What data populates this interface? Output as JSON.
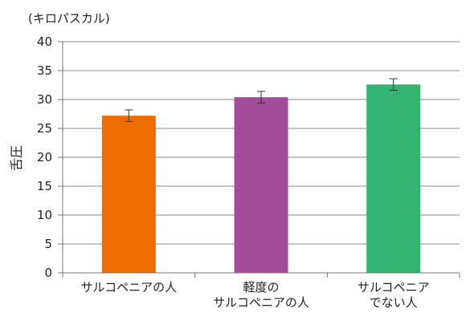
{
  "chart_data": {
    "type": "bar",
    "unit_label": "(キロパスカル)",
    "ylabel": "舌圧",
    "ylim": [
      0,
      40
    ],
    "yticks": [
      0,
      5,
      10,
      15,
      20,
      25,
      30,
      35,
      40
    ],
    "grid": true,
    "categories": [
      [
        "サルコペニアの人"
      ],
      [
        "軽度の",
        "サルコペニアの人"
      ],
      [
        "サルコペニア",
        "でない人"
      ]
    ],
    "values": [
      27.2,
      30.4,
      32.6
    ],
    "error": [
      1.0,
      1.0,
      1.0
    ],
    "colors": [
      "#ef6c00",
      "#a34d9a",
      "#33b473"
    ]
  }
}
